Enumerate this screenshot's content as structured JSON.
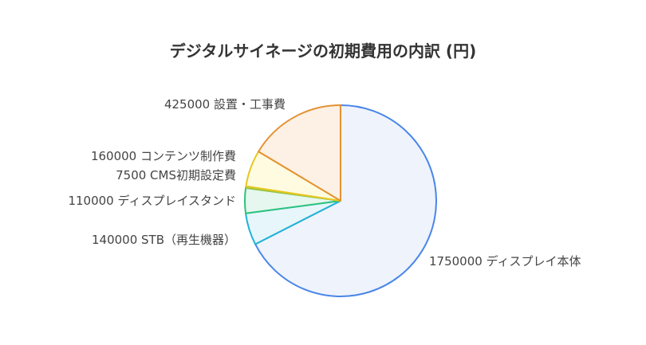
{
  "chart_data": {
    "type": "pie",
    "title": "デジタルサイネージの初期費用の内訳 (円)",
    "slices": [
      {
        "label": "ディスプレイ本体",
        "value": 1750000,
        "display": "1750000 ディスプレイ本体",
        "fill": "#eef3fc",
        "stroke": "#4a86e8"
      },
      {
        "label": "STB（再生機器）",
        "value": 140000,
        "display": "140000 STB（再生機器）",
        "fill": "#e6f6fb",
        "stroke": "#1fb3d4"
      },
      {
        "label": "ディスプレイスタンド",
        "value": 110000,
        "display": "110000 ディスプレイスタンド",
        "fill": "#e5f7ee",
        "stroke": "#2ec27e"
      },
      {
        "label": "CMS初期設定費",
        "value": 7500,
        "display": "7500 CMS初期設定費",
        "fill": "#f3f9e3",
        "stroke": "#9bc53d"
      },
      {
        "label": "コンテンツ制作費",
        "value": 160000,
        "display": "160000 コンテンツ制作費",
        "fill": "#fffbe0",
        "stroke": "#e8c620"
      },
      {
        "label": "設置・工事費",
        "value": 425000,
        "display": "425000 設置・工事費",
        "fill": "#fdf0e4",
        "stroke": "#e39233"
      }
    ],
    "start_angle_deg": 0,
    "direction": "clockwise"
  }
}
